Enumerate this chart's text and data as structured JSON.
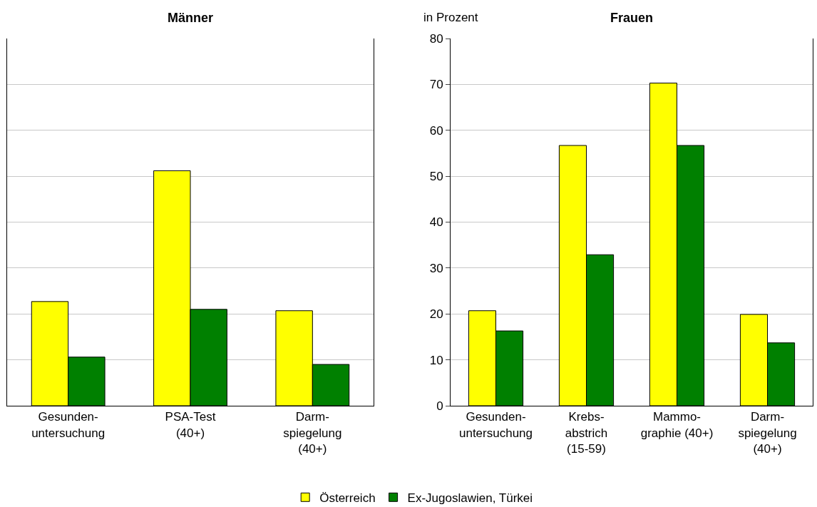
{
  "chart_data": [
    {
      "type": "bar",
      "title": "Männer",
      "categories": [
        "Gesunden-\nuntersuchung",
        "PSA-Test\n(40+)",
        "Darm-\nspiegelung\n(40+)"
      ],
      "series": [
        {
          "color": "#ffff00",
          "values": [
            22.7,
            51.2,
            20.7
          ]
        },
        {
          "color": "#008000",
          "values": [
            10.6,
            21.0,
            9.0
          ]
        }
      ],
      "ylim": [
        0,
        80
      ],
      "yticks": [
        0,
        10,
        20,
        30,
        40,
        50,
        60,
        70,
        80
      ],
      "grid": "y",
      "legend": false,
      "tick_labels": "x"
    },
    {
      "type": "bar",
      "title": "Frauen",
      "ylabel": "in Prozent",
      "categories": [
        "Gesunden-\nuntersuchung",
        "Krebs-\nabstrich\n(15-59)",
        "Mammo-\ngraphie (40+)",
        "Darm-\nspiegelung\n(40+)"
      ],
      "series": [
        {
          "name": "Österreich",
          "color": "#ffff00",
          "values": [
            20.7,
            56.7,
            70.3,
            19.9
          ]
        },
        {
          "name": "Ex-Jugoslawien, Türkei",
          "color": "#008000",
          "values": [
            16.3,
            32.9,
            56.7,
            13.7
          ]
        }
      ],
      "ylim": [
        0,
        80
      ],
      "yticks": [
        0,
        10,
        20,
        30,
        40,
        50,
        60,
        70,
        80
      ],
      "grid": "y",
      "legend": "bottom"
    }
  ]
}
